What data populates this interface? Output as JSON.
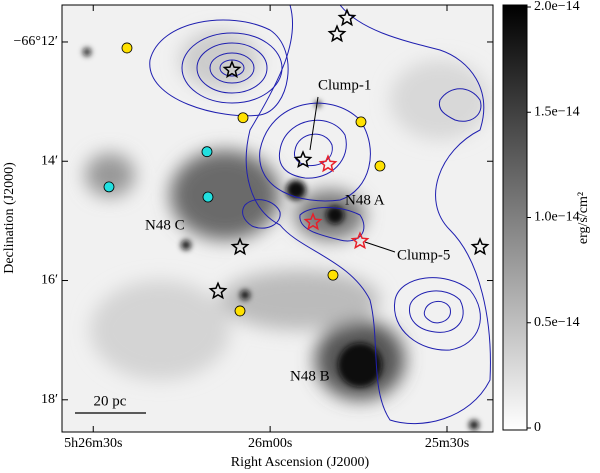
{
  "chart_data": {
    "type": "image",
    "xlabel": "Right Ascension (J2000)",
    "ylabel": "Declination (J2000)",
    "xlim": [
      19595.3,
      19522.2
    ],
    "xticks": [
      {
        "value": 19590,
        "label": "5h26m30s"
      },
      {
        "value": 19560,
        "label": "26m00s"
      },
      {
        "value": 19530,
        "label": "25m30s"
      }
    ],
    "ylim": [
      -3978.54,
      -3971.38
    ],
    "yticks": [
      {
        "value": -3972,
        "label": "−66°12′"
      },
      {
        "value": -3974,
        "label": "14′"
      },
      {
        "value": -3976,
        "label": "16′"
      },
      {
        "value": -3978,
        "label": "18′"
      }
    ],
    "colorbar": {
      "label": "erg/s/cm²",
      "lim": [
        0,
        2e-14
      ],
      "ticks": [
        0,
        {
          "value": 5e-15,
          "label": "0.5e−14"
        },
        {
          "value": 1e-14,
          "label": "1.0e−14"
        },
        {
          "value": 1.5e-14,
          "label": "1.5e−14"
        },
        {
          "value": 2e-14,
          "label": "2.0e−14"
        }
      ]
    },
    "annotations": [
      "Clump-1",
      "N48 A",
      "N48 C",
      "Clump-5",
      "N48 B",
      "20 pc"
    ],
    "series": [
      {
        "marker": "star",
        "color": "#000000",
        "x": [
          19566.47,
          19546.96,
          19548.66,
          19554.43,
          19565.11,
          19568.84,
          19524.41
        ],
        "y": [
          -3972.47,
          -3971.6,
          -3971.87,
          -3973.98,
          -3975.44,
          -3976.18,
          -3975.44
        ]
      },
      {
        "marker": "star",
        "color": "#e8202a",
        "x": [
          19550.19,
          19552.73,
          19544.76
        ],
        "y": [
          -3974.05,
          -3975.02,
          -3975.34
        ]
      },
      {
        "marker": "circle",
        "color": "#ffe100",
        "x": [
          19584.28,
          19564.6,
          19544.59,
          19541.37,
          19549.34,
          19565.11
        ],
        "y": [
          -3972.1,
          -3973.27,
          -3973.34,
          -3974.08,
          -3975.91,
          -3976.51
        ]
      },
      {
        "marker": "circle",
        "color": "#22e0e0",
        "x": [
          19570.71,
          19587.33,
          19570.54
        ],
        "y": [
          -3973.84,
          -3974.43,
          -3974.6
        ]
      }
    ]
  }
}
